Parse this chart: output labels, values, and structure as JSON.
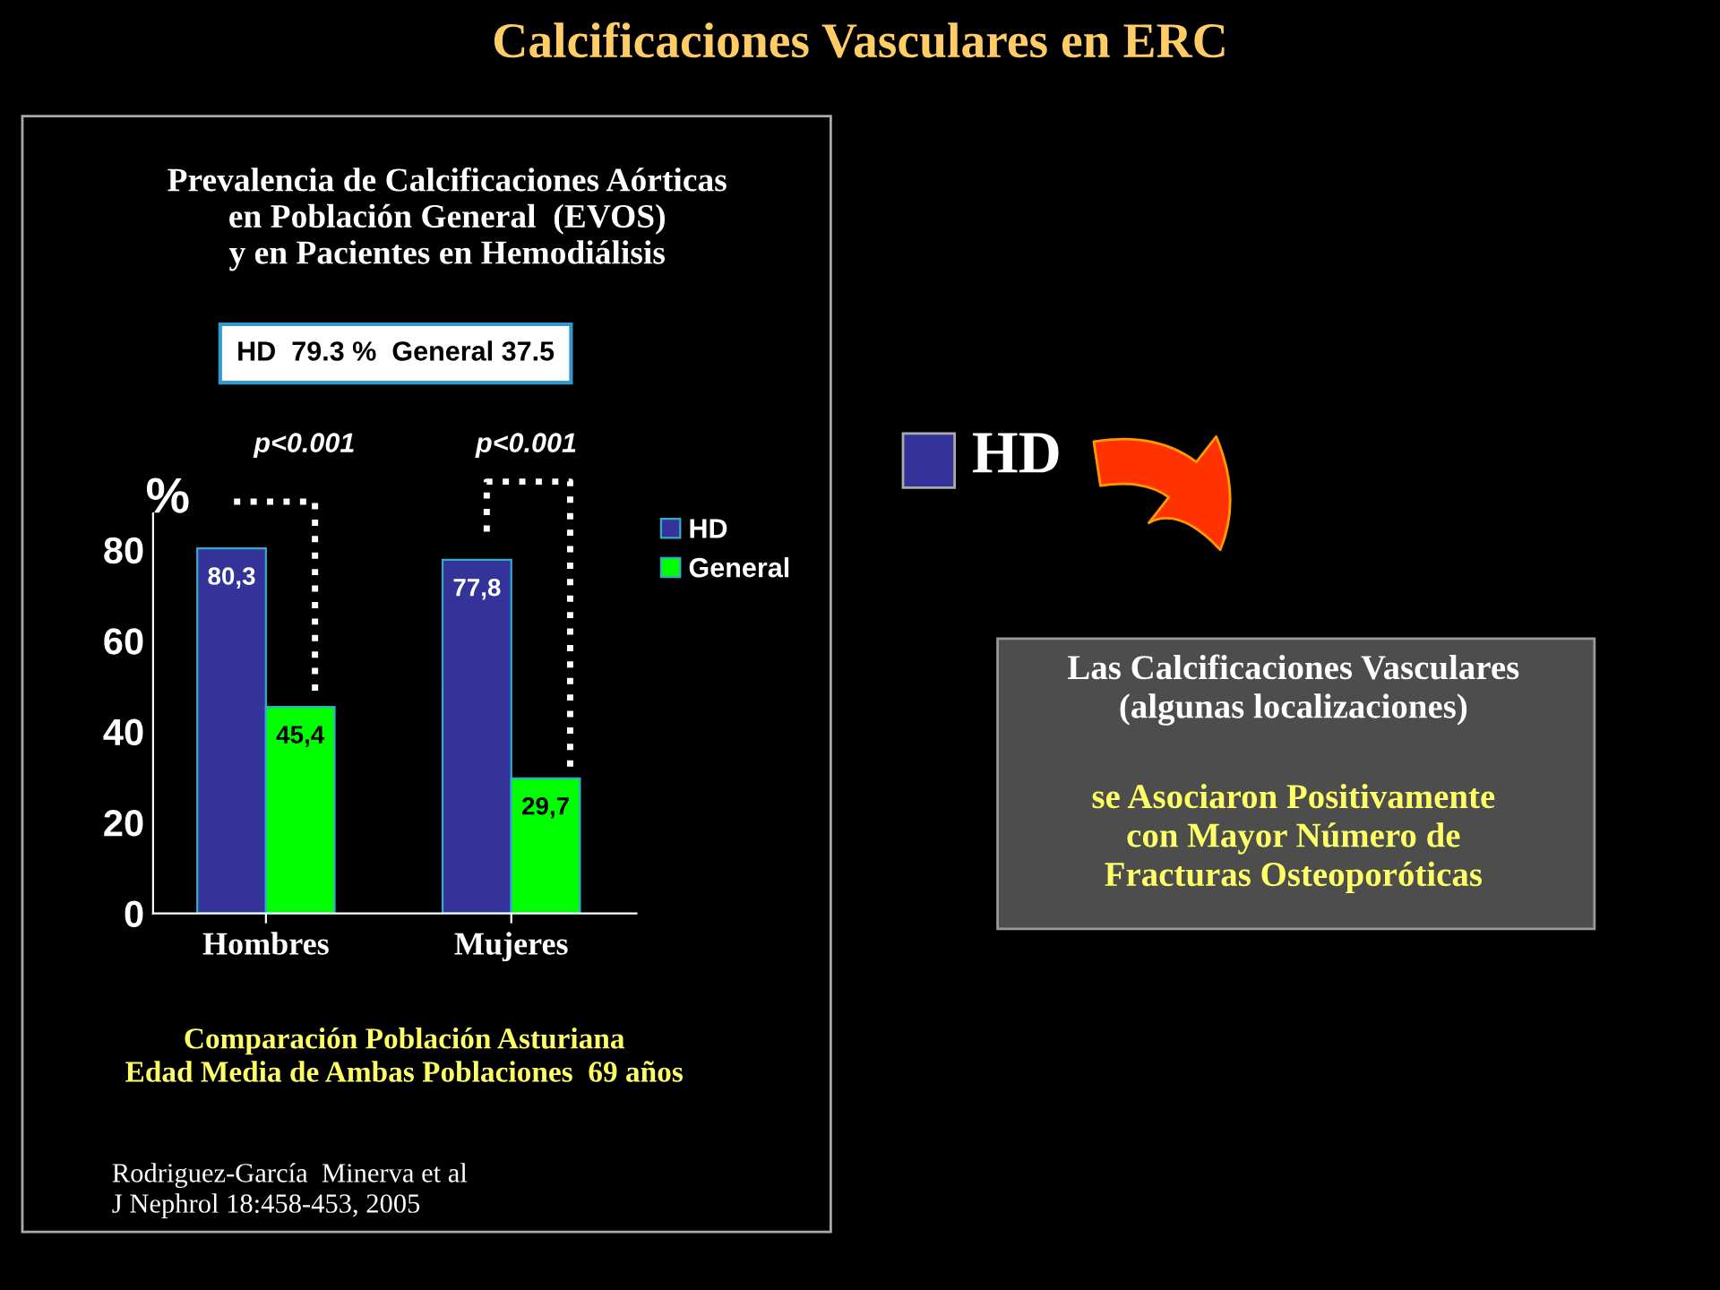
{
  "chart_data": {
    "type": "bar",
    "title": "Calcificaciones Vasculares en ERC",
    "subtitle": "Prevalencia de Calcificaciones Aórticas\nen Población General  (EVOS)\ny en Pacientes en Hemodiálisis",
    "ylabel": "%",
    "categories": [
      "Hombres",
      "Mujeres"
    ],
    "series": [
      {
        "name": "HD",
        "color": "#333399",
        "values": [
          80.3,
          77.8
        ],
        "value_labels": [
          "80,3",
          "77,8"
        ]
      },
      {
        "name": "General",
        "color": "#00ff00",
        "values": [
          45.4,
          29.7
        ],
        "value_labels": [
          "45,4",
          "29,7"
        ]
      }
    ],
    "ylim": [
      0,
      88
    ],
    "yticks": [
      0,
      20,
      40,
      60,
      80
    ],
    "grid": false,
    "legend": "top right",
    "annotations": [
      "HD  79.3 %  General 37.5",
      "p<0.001",
      "p<0.001",
      "Comparación Población Asturiana\nEdad Media de Ambas Poblaciones  69 años",
      "Rodriguez-García  Minerva et al\nJ Nephrol 18:458-453, 2005",
      "HD",
      "Las Calcificaciones Vasculares\n(algunas localizaciones)",
      "se Asociaron Positivamente\ncon Mayor Número de\nFracturas Osteoporóticas"
    ]
  }
}
